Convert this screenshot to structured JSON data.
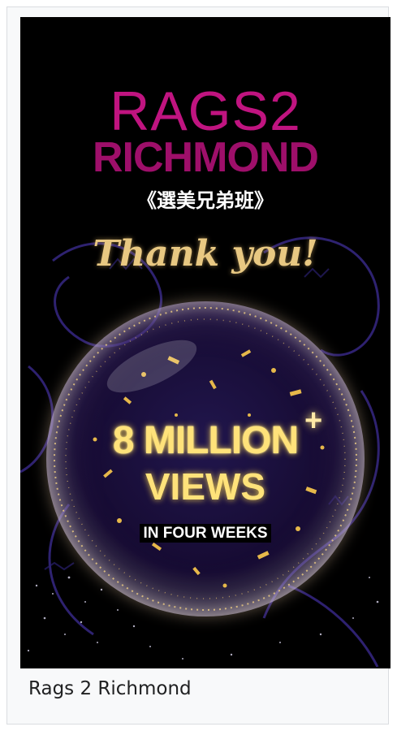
{
  "poster": {
    "title_line1": "RAGS",
    "title_numeral": "2",
    "title_line2": "RICHMOND",
    "chinese_title": "《選美兄弟班》",
    "thanks": "Thank you!",
    "count": "8 MILLION",
    "count_suffix": "+",
    "views_word": "VIEWS",
    "period": "IN FOUR WEEKS"
  },
  "caption": "Rags 2 Richmond",
  "colors": {
    "title_magenta": "#c01480",
    "gold": "#e8c882",
    "glow_yellow": "#ffe27a",
    "background": "#000000"
  }
}
